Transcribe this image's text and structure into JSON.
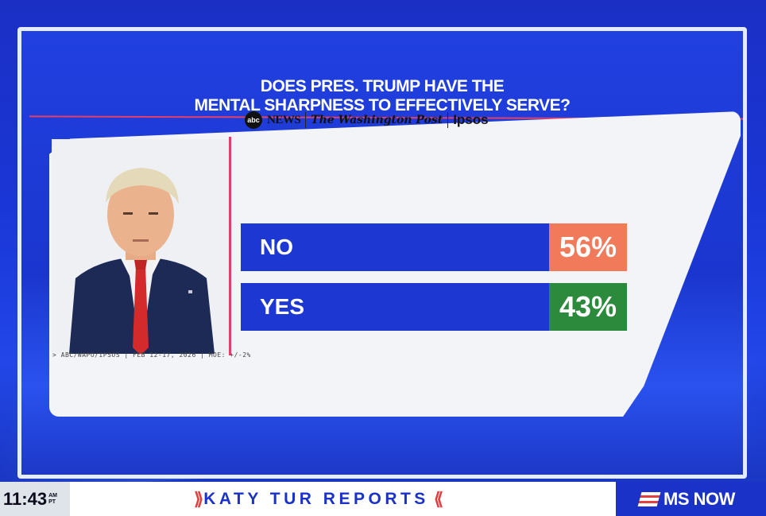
{
  "title_lines": [
    "DOES PRES. TRUMP HAVE THE",
    "MENTAL SHARPNESS TO EFFECTIVELY SERVE?"
  ],
  "logos": {
    "abc_badge": "abc",
    "abc_news": "NEWS",
    "wapo": "The Washington Post",
    "ipsos": "Ipsos"
  },
  "chart_data": {
    "type": "bar",
    "title": "DOES PRES. TRUMP HAVE THE MENTAL SHARPNESS TO EFFECTIVELY SERVE?",
    "categories": [
      "NO",
      "YES"
    ],
    "values": [
      56,
      43
    ],
    "value_labels": [
      "56%",
      "43%"
    ],
    "value_colors": [
      "#f07a5a",
      "#2c8a3c"
    ],
    "bar_color": "#1d37d3",
    "xlim": [
      0,
      100
    ]
  },
  "source_line": "> ABC/WAPO/IPSOS  |  FEB 12-17, 2026  |  MOE: +/-2%",
  "ticker": {
    "time": "11:43",
    "am": "AM",
    "tz": "PT",
    "show": "KATY TUR REPORTS",
    "chev_left": "⟫",
    "chev_right": "⟪",
    "network": "MS NOW"
  },
  "colors": {
    "accent_red": "#e0406a",
    "brand_blue": "#1b32c8"
  }
}
